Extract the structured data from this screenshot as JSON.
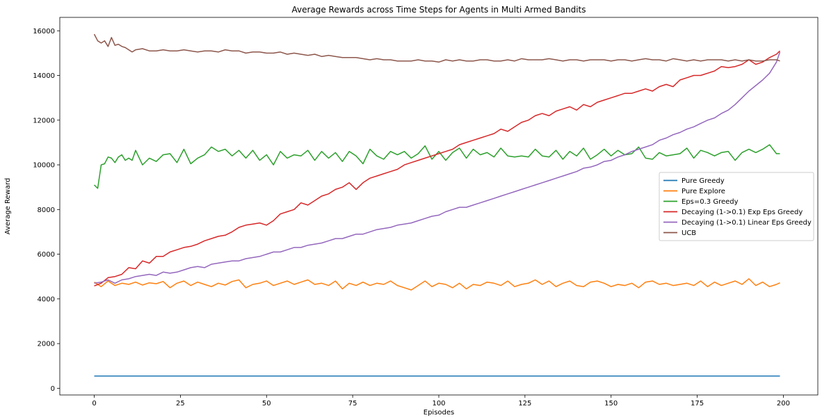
{
  "chart_data": {
    "type": "line",
    "title": "Average Rewards across Time Steps for Agents in Multi Armed Bandits",
    "xlabel": "Episodes",
    "ylabel": "Average Reward",
    "xlim": [
      -10,
      210
    ],
    "ylim": [
      -300,
      16600
    ],
    "xticks": [
      0,
      25,
      50,
      75,
      100,
      125,
      150,
      175,
      200
    ],
    "yticks": [
      0,
      2000,
      4000,
      6000,
      8000,
      10000,
      12000,
      14000,
      16000
    ],
    "grid": false,
    "legend_position": "right",
    "series": [
      {
        "name": "Pure Greedy",
        "color": "#1f77b4",
        "x": [
          0,
          199
        ],
        "y": [
          550,
          550
        ]
      },
      {
        "name": "Pure Explore",
        "color": "#ff7f0e",
        "x": [
          0,
          2,
          4,
          6,
          8,
          10,
          12,
          14,
          16,
          18,
          20,
          22,
          24,
          26,
          28,
          30,
          32,
          34,
          36,
          38,
          40,
          42,
          44,
          46,
          48,
          50,
          52,
          54,
          56,
          58,
          60,
          62,
          64,
          66,
          68,
          70,
          72,
          74,
          76,
          78,
          80,
          82,
          84,
          86,
          88,
          90,
          92,
          94,
          96,
          98,
          100,
          102,
          104,
          106,
          108,
          110,
          112,
          114,
          116,
          118,
          120,
          122,
          124,
          126,
          128,
          130,
          132,
          134,
          136,
          138,
          140,
          142,
          144,
          146,
          148,
          150,
          152,
          154,
          156,
          158,
          160,
          162,
          164,
          166,
          168,
          170,
          172,
          174,
          176,
          178,
          180,
          182,
          184,
          186,
          188,
          190,
          192,
          194,
          196,
          198,
          199
        ],
        "y": [
          4750,
          4550,
          4800,
          4600,
          4700,
          4650,
          4750,
          4620,
          4720,
          4680,
          4780,
          4500,
          4700,
          4800,
          4600,
          4750,
          4650,
          4550,
          4700,
          4620,
          4780,
          4850,
          4500,
          4650,
          4700,
          4800,
          4600,
          4700,
          4800,
          4650,
          4750,
          4850,
          4650,
          4700,
          4600,
          4800,
          4450,
          4700,
          4600,
          4750,
          4600,
          4700,
          4650,
          4800,
          4600,
          4500,
          4400,
          4600,
          4800,
          4550,
          4700,
          4650,
          4500,
          4700,
          4450,
          4650,
          4600,
          4750,
          4700,
          4600,
          4800,
          4550,
          4650,
          4700,
          4850,
          4650,
          4800,
          4550,
          4700,
          4800,
          4600,
          4550,
          4750,
          4800,
          4700,
          4550,
          4650,
          4600,
          4700,
          4500,
          4750,
          4800,
          4650,
          4700,
          4600,
          4650,
          4700,
          4600,
          4800,
          4550,
          4750,
          4600,
          4700,
          4800,
          4650,
          4900,
          4600,
          4750,
          4550,
          4650,
          4720
        ]
      },
      {
        "name": "Eps=0.3 Greedy",
        "color": "#2ca02c",
        "x": [
          0,
          1,
          2,
          3,
          4,
          5,
          6,
          7,
          8,
          9,
          10,
          11,
          12,
          14,
          16,
          18,
          20,
          22,
          24,
          26,
          28,
          30,
          32,
          34,
          36,
          38,
          40,
          42,
          44,
          46,
          48,
          50,
          52,
          54,
          56,
          58,
          60,
          62,
          64,
          66,
          68,
          70,
          72,
          74,
          76,
          78,
          80,
          82,
          84,
          86,
          88,
          90,
          92,
          94,
          96,
          98,
          100,
          102,
          104,
          106,
          108,
          110,
          112,
          114,
          116,
          118,
          120,
          122,
          124,
          126,
          128,
          130,
          132,
          134,
          136,
          138,
          140,
          142,
          144,
          146,
          148,
          150,
          152,
          154,
          156,
          158,
          160,
          162,
          164,
          166,
          168,
          170,
          172,
          174,
          176,
          178,
          180,
          182,
          184,
          186,
          188,
          190,
          192,
          194,
          196,
          198,
          199
        ],
        "y": [
          9100,
          8950,
          10000,
          10050,
          10350,
          10300,
          10100,
          10350,
          10450,
          10200,
          10300,
          10200,
          10650,
          10000,
          10300,
          10150,
          10450,
          10500,
          10100,
          10700,
          10050,
          10300,
          10450,
          10800,
          10600,
          10700,
          10400,
          10650,
          10300,
          10650,
          10200,
          10450,
          10000,
          10600,
          10300,
          10450,
          10400,
          10650,
          10200,
          10600,
          10300,
          10550,
          10150,
          10600,
          10400,
          10050,
          10700,
          10400,
          10250,
          10600,
          10450,
          10600,
          10300,
          10500,
          10850,
          10250,
          10600,
          10200,
          10550,
          10750,
          10300,
          10700,
          10450,
          10550,
          10350,
          10750,
          10400,
          10350,
          10400,
          10350,
          10700,
          10400,
          10350,
          10650,
          10250,
          10600,
          10400,
          10750,
          10250,
          10450,
          10700,
          10400,
          10650,
          10450,
          10500,
          10800,
          10300,
          10250,
          10550,
          10400,
          10450,
          10500,
          10750,
          10300,
          10650,
          10550,
          10400,
          10550,
          10600,
          10200,
          10550,
          10700,
          10550,
          10700,
          10900,
          10500,
          10500
        ]
      },
      {
        "name": "Decaying (1->0.1) Exp Eps Greedy",
        "color": "#d62728",
        "x": [
          0,
          2,
          4,
          6,
          8,
          10,
          12,
          14,
          16,
          18,
          20,
          22,
          24,
          26,
          28,
          30,
          32,
          34,
          36,
          38,
          40,
          42,
          44,
          46,
          48,
          50,
          52,
          54,
          56,
          58,
          60,
          62,
          64,
          66,
          68,
          70,
          72,
          74,
          76,
          78,
          80,
          82,
          84,
          86,
          88,
          90,
          92,
          94,
          96,
          98,
          100,
          102,
          104,
          106,
          108,
          110,
          112,
          114,
          116,
          118,
          120,
          122,
          124,
          126,
          128,
          130,
          132,
          134,
          136,
          138,
          140,
          142,
          144,
          146,
          148,
          150,
          152,
          154,
          156,
          158,
          160,
          162,
          164,
          166,
          168,
          170,
          172,
          174,
          176,
          178,
          180,
          182,
          184,
          186,
          188,
          190,
          192,
          194,
          196,
          198,
          199
        ],
        "y": [
          4580,
          4700,
          4950,
          5000,
          5100,
          5400,
          5350,
          5700,
          5600,
          5900,
          5900,
          6100,
          6200,
          6300,
          6350,
          6450,
          6600,
          6700,
          6800,
          6850,
          7000,
          7200,
          7300,
          7350,
          7400,
          7300,
          7500,
          7800,
          7900,
          8000,
          8300,
          8200,
          8400,
          8600,
          8700,
          8900,
          9000,
          9200,
          8900,
          9200,
          9400,
          9500,
          9600,
          9700,
          9800,
          10000,
          10100,
          10200,
          10300,
          10400,
          10500,
          10600,
          10700,
          10900,
          11000,
          11100,
          11200,
          11300,
          11400,
          11600,
          11500,
          11700,
          11900,
          12000,
          12200,
          12300,
          12200,
          12400,
          12500,
          12600,
          12450,
          12700,
          12600,
          12800,
          12900,
          13000,
          13100,
          13200,
          13200,
          13300,
          13400,
          13300,
          13500,
          13600,
          13500,
          13800,
          13900,
          14000,
          14000,
          14100,
          14200,
          14400,
          14350,
          14400,
          14500,
          14700,
          14500,
          14600,
          14800,
          14950,
          15100
        ]
      },
      {
        "name": "Decaying (1->0.1) Linear Eps Greedy",
        "color": "#9467bd",
        "x": [
          0,
          2,
          4,
          6,
          8,
          10,
          12,
          14,
          16,
          18,
          20,
          22,
          24,
          26,
          28,
          30,
          32,
          34,
          36,
          38,
          40,
          42,
          44,
          46,
          48,
          50,
          52,
          54,
          56,
          58,
          60,
          62,
          64,
          66,
          68,
          70,
          72,
          74,
          76,
          78,
          80,
          82,
          84,
          86,
          88,
          90,
          92,
          94,
          96,
          98,
          100,
          102,
          104,
          106,
          108,
          110,
          112,
          114,
          116,
          118,
          120,
          122,
          124,
          126,
          128,
          130,
          132,
          134,
          136,
          138,
          140,
          142,
          144,
          146,
          148,
          150,
          152,
          154,
          156,
          158,
          160,
          162,
          164,
          166,
          168,
          170,
          172,
          174,
          176,
          178,
          180,
          182,
          184,
          186,
          188,
          190,
          192,
          194,
          196,
          198,
          199
        ],
        "y": [
          4700,
          4750,
          4850,
          4700,
          4850,
          4900,
          5000,
          5050,
          5100,
          5050,
          5200,
          5150,
          5200,
          5300,
          5400,
          5450,
          5400,
          5550,
          5600,
          5650,
          5700,
          5700,
          5800,
          5850,
          5900,
          6000,
          6100,
          6100,
          6200,
          6300,
          6300,
          6400,
          6450,
          6500,
          6600,
          6700,
          6700,
          6800,
          6900,
          6900,
          7000,
          7100,
          7150,
          7200,
          7300,
          7350,
          7400,
          7500,
          7600,
          7700,
          7750,
          7900,
          8000,
          8100,
          8100,
          8200,
          8300,
          8400,
          8500,
          8600,
          8700,
          8800,
          8900,
          9000,
          9100,
          9200,
          9300,
          9400,
          9500,
          9600,
          9700,
          9850,
          9900,
          10000,
          10150,
          10200,
          10350,
          10450,
          10600,
          10700,
          10800,
          10900,
          11100,
          11200,
          11350,
          11450,
          11600,
          11700,
          11850,
          12000,
          12100,
          12300,
          12450,
          12700,
          13000,
          13300,
          13550,
          13800,
          14100,
          14600,
          15050
        ]
      },
      {
        "name": "UCB",
        "color": "#8c564b",
        "x": [
          0,
          1,
          2,
          3,
          4,
          5,
          6,
          7,
          8,
          9,
          10,
          11,
          12,
          14,
          16,
          18,
          20,
          22,
          24,
          26,
          28,
          30,
          32,
          34,
          36,
          38,
          40,
          42,
          44,
          46,
          48,
          50,
          52,
          54,
          56,
          58,
          60,
          62,
          64,
          66,
          68,
          70,
          72,
          74,
          76,
          78,
          80,
          82,
          84,
          86,
          88,
          90,
          92,
          94,
          96,
          98,
          100,
          102,
          104,
          106,
          108,
          110,
          112,
          114,
          116,
          118,
          120,
          122,
          124,
          126,
          128,
          130,
          132,
          134,
          136,
          138,
          140,
          142,
          144,
          146,
          148,
          150,
          152,
          154,
          156,
          158,
          160,
          162,
          164,
          166,
          168,
          170,
          172,
          174,
          176,
          178,
          180,
          182,
          184,
          186,
          188,
          190,
          192,
          194,
          196,
          198,
          199
        ],
        "y": [
          15850,
          15550,
          15450,
          15550,
          15300,
          15700,
          15350,
          15400,
          15300,
          15250,
          15150,
          15050,
          15150,
          15200,
          15100,
          15100,
          15150,
          15100,
          15100,
          15150,
          15100,
          15050,
          15100,
          15100,
          15050,
          15150,
          15100,
          15100,
          15000,
          15050,
          15050,
          15000,
          15000,
          15050,
          14950,
          15000,
          14950,
          14900,
          14950,
          14850,
          14900,
          14850,
          14800,
          14800,
          14800,
          14750,
          14700,
          14750,
          14700,
          14700,
          14650,
          14650,
          14650,
          14700,
          14650,
          14650,
          14600,
          14700,
          14650,
          14700,
          14650,
          14650,
          14700,
          14700,
          14650,
          14650,
          14700,
          14650,
          14750,
          14700,
          14700,
          14700,
          14750,
          14700,
          14650,
          14700,
          14700,
          14650,
          14700,
          14700,
          14700,
          14650,
          14700,
          14700,
          14650,
          14700,
          14750,
          14700,
          14700,
          14650,
          14750,
          14700,
          14650,
          14700,
          14650,
          14700,
          14700,
          14700,
          14650,
          14700,
          14650,
          14700,
          14650,
          14650,
          14700,
          14700,
          14650
        ]
      }
    ]
  }
}
